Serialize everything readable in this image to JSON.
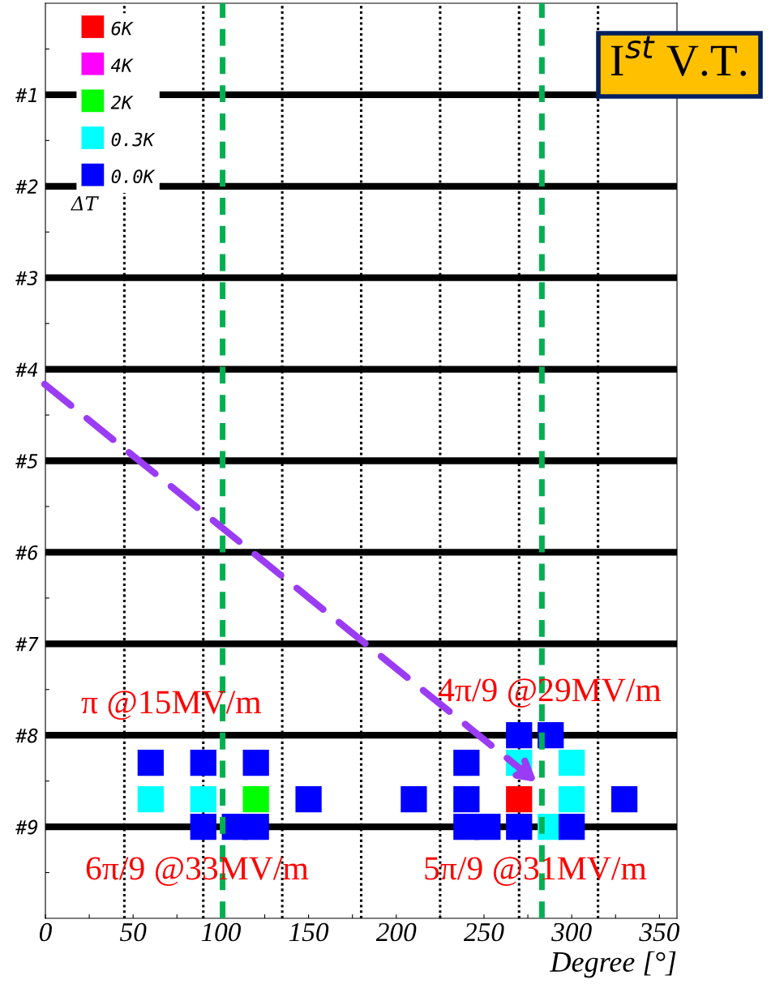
{
  "chart_data": {
    "type": "scatter",
    "title": "I$^{st}$ V.T.",
    "xlabel": "Degree [°]",
    "legend_title": "ΔT",
    "legend": "top left",
    "marker": "square",
    "grid": "y",
    "series": [
      {
        "name": "0.0K",
        "color": "#0000ff",
        "x": [
          270,
          288,
          60,
          90,
          120,
          240,
          150,
          210,
          240,
          330,
          90,
          108,
          120,
          240,
          252,
          270,
          300
        ],
        "values": [
          8.0,
          8.0,
          8.3,
          8.3,
          8.3,
          8.3,
          8.7,
          8.7,
          8.7,
          8.7,
          9.0,
          9.0,
          9.0,
          9.0,
          9.0,
          9.0,
          9.0
        ]
      },
      {
        "name": "0.3K",
        "color": "#00ffff",
        "x": [
          270,
          300,
          60,
          90,
          300,
          288
        ],
        "values": [
          8.3,
          8.3,
          8.7,
          8.7,
          8.7,
          9.0
        ]
      },
      {
        "name": "2K",
        "color": "#00ff00",
        "x": [
          120
        ],
        "values": [
          8.7
        ]
      },
      {
        "name": "4K",
        "color": "#ff00ff"
      },
      {
        "name": "6K",
        "color": "#ff0000",
        "x": [
          270
        ],
        "values": [
          8.7
        ]
      }
    ],
    "xlim": [
      0,
      360
    ],
    "ylim": [
      10,
      0
    ],
    "xticks": [
      0,
      {
        "value": 25,
        "label": null
      },
      50,
      {
        "value": 75,
        "label": null
      },
      100,
      {
        "value": 125,
        "label": null
      },
      150,
      {
        "value": 175,
        "label": null
      },
      200,
      {
        "value": 225,
        "label": null
      },
      250,
      {
        "value": 275,
        "label": null
      },
      300,
      {
        "value": 325,
        "label": null
      },
      350
    ],
    "yticks": [
      {
        "value": 0.5,
        "label": null
      },
      {
        "value": 1,
        "label": "#1"
      },
      {
        "value": 1.5,
        "label": null
      },
      {
        "value": 2,
        "label": "#2"
      },
      {
        "value": 2.5,
        "label": null
      },
      {
        "value": 3,
        "label": "#3"
      },
      {
        "value": 3.5,
        "label": null
      },
      {
        "value": 4,
        "label": "#4"
      },
      {
        "value": 4.5,
        "label": null
      },
      {
        "value": 5,
        "label": "#5"
      },
      {
        "value": 5.5,
        "label": null
      },
      {
        "value": 6,
        "label": "#6"
      },
      {
        "value": 6.5,
        "label": null
      },
      {
        "value": 7,
        "label": "#7"
      },
      {
        "value": 7.5,
        "label": null
      },
      {
        "value": 8,
        "label": "#8"
      },
      {
        "value": 8.5,
        "label": null
      },
      {
        "value": 9,
        "label": "#9"
      },
      {
        "value": 9.5,
        "label": null
      }
    ],
    "ref_lines": [
      {
        "axis": "x",
        "value": 45,
        "color": "#000000",
        "line_style": "dotted"
      },
      {
        "axis": "x",
        "value": 90,
        "color": "#000000",
        "line_style": "dotted"
      },
      {
        "axis": "x",
        "value": 135,
        "color": "#000000",
        "line_style": "dotted"
      },
      {
        "axis": "x",
        "value": 180,
        "color": "#000000",
        "line_style": "dotted"
      },
      {
        "axis": "x",
        "value": 225,
        "color": "#000000",
        "line_style": "dotted"
      },
      {
        "axis": "x",
        "value": 270,
        "color": "#000000",
        "line_style": "dotted"
      },
      {
        "axis": "x",
        "value": 315,
        "color": "#000000",
        "line_style": "dotted"
      },
      {
        "axis": "x",
        "value": 101,
        "color": "#00b050",
        "line_style": "dashed"
      },
      {
        "axis": "x",
        "value": 283,
        "color": "#00b050",
        "line_style": "dashed"
      }
    ],
    "annotations": [
      "π @15MV/m",
      "4π/9 @29MV/m",
      "6π/9 @33MV/m",
      "5π/9 @31MV/m"
    ]
  }
}
